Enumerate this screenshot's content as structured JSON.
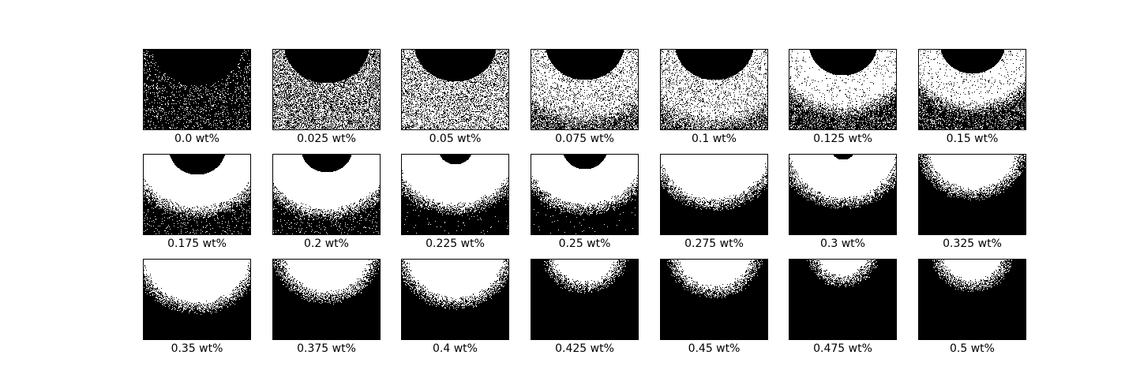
{
  "figure": {
    "panels": [
      {
        "label": "0.0 wt%",
        "concentration": 0.0
      },
      {
        "label": "0.025 wt%",
        "concentration": 0.025
      },
      {
        "label": "0.05 wt%",
        "concentration": 0.05
      },
      {
        "label": "0.075 wt%",
        "concentration": 0.075
      },
      {
        "label": "0.1 wt%",
        "concentration": 0.1
      },
      {
        "label": "0.125 wt%",
        "concentration": 0.125
      },
      {
        "label": "0.15 wt%",
        "concentration": 0.15
      },
      {
        "label": "0.175 wt%",
        "concentration": 0.175
      },
      {
        "label": "0.2 wt%",
        "concentration": 0.2
      },
      {
        "label": "0.225 wt%",
        "concentration": 0.225
      },
      {
        "label": "0.25 wt%",
        "concentration": 0.25
      },
      {
        "label": "0.275 wt%",
        "concentration": 0.275
      },
      {
        "label": "0.3 wt%",
        "concentration": 0.3
      },
      {
        "label": "0.325 wt%",
        "concentration": 0.325
      },
      {
        "label": "0.35 wt%",
        "concentration": 0.35
      },
      {
        "label": "0.375 wt%",
        "concentration": 0.375
      },
      {
        "label": "0.4 wt%",
        "concentration": 0.4
      },
      {
        "label": "0.425 wt%",
        "concentration": 0.425
      },
      {
        "label": "0.45 wt%",
        "concentration": 0.45
      },
      {
        "label": "0.475 wt%",
        "concentration": 0.475
      },
      {
        "label": "0.5 wt%",
        "concentration": 0.5
      }
    ],
    "colors": {
      "foreground": "#000000",
      "background": "#ffffff"
    }
  }
}
